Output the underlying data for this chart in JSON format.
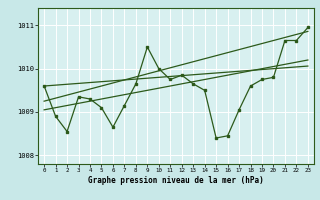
{
  "title": "Graphe pression niveau de la mer (hPa)",
  "background_color": "#c8e8e8",
  "plot_bg_color": "#d8f0f0",
  "grid_color": "#ffffff",
  "line_color": "#2d5a1b",
  "x_ticks": [
    0,
    1,
    2,
    3,
    4,
    5,
    6,
    7,
    8,
    9,
    10,
    11,
    12,
    13,
    14,
    15,
    16,
    17,
    18,
    19,
    20,
    21,
    22,
    23
  ],
  "ylim": [
    1007.8,
    1011.4
  ],
  "yticks": [
    1008,
    1009,
    1010,
    1011
  ],
  "trend1": [
    1009.05,
    1009.1,
    1009.15,
    1009.2,
    1009.25,
    1009.3,
    1009.35,
    1009.4,
    1009.45,
    1009.5,
    1009.55,
    1009.6,
    1009.65,
    1009.7,
    1009.75,
    1009.8,
    1009.85,
    1009.9,
    1009.95,
    1010.0,
    1010.05,
    1010.1,
    1010.15,
    1010.2
  ],
  "trend2": [
    1009.25,
    1009.32,
    1009.39,
    1009.46,
    1009.53,
    1009.6,
    1009.67,
    1009.74,
    1009.81,
    1009.88,
    1009.95,
    1010.02,
    1010.09,
    1010.16,
    1010.23,
    1010.3,
    1010.37,
    1010.44,
    1010.51,
    1010.58,
    1010.65,
    1010.72,
    1010.79,
    1010.86
  ],
  "trend3": [
    1009.6,
    1009.62,
    1009.64,
    1009.66,
    1009.68,
    1009.7,
    1009.72,
    1009.74,
    1009.76,
    1009.78,
    1009.8,
    1009.82,
    1009.84,
    1009.86,
    1009.88,
    1009.9,
    1009.92,
    1009.94,
    1009.96,
    1009.98,
    1010.0,
    1010.02,
    1010.04,
    1010.06
  ],
  "main_series": [
    1009.6,
    1008.9,
    1008.55,
    1009.35,
    1009.3,
    1009.1,
    1008.65,
    1009.15,
    1009.65,
    1010.5,
    1010.0,
    1009.75,
    1009.85,
    1009.65,
    1009.5,
    1008.4,
    1008.45,
    1009.05,
    1009.6,
    1009.75,
    1009.8,
    1010.65,
    1010.65,
    1010.95
  ]
}
